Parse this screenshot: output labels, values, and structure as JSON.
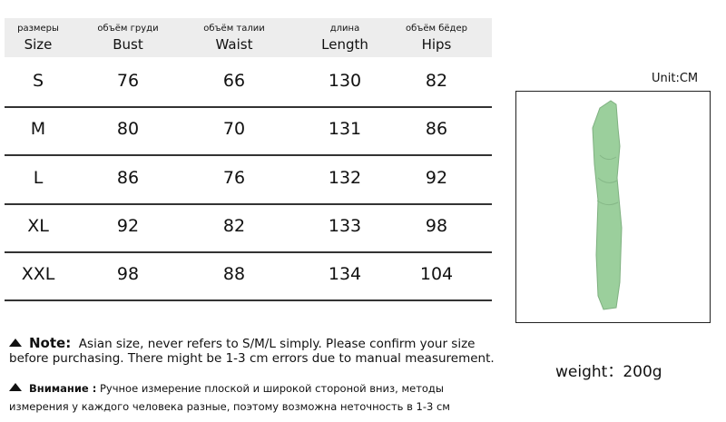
{
  "table": {
    "headers": [
      {
        "ru": "размеры",
        "en": "Size"
      },
      {
        "ru": "объём груди",
        "en": "Bust"
      },
      {
        "ru": "объём талии",
        "en": "Waist"
      },
      {
        "ru": "длина",
        "en": "Length"
      },
      {
        "ru": "объём бёдер",
        "en": "Hips"
      }
    ],
    "rows": [
      [
        "S",
        "76",
        "66",
        "130",
        "82"
      ],
      [
        "M",
        "80",
        "70",
        "131",
        "86"
      ],
      [
        "L",
        "86",
        "76",
        "132",
        "92"
      ],
      [
        "XL",
        "92",
        "82",
        "133",
        "98"
      ],
      [
        "XXL",
        "98",
        "88",
        "134",
        "104"
      ]
    ]
  },
  "notes": {
    "en_label": "Note:",
    "en_text": "Asian size, never refers to S/M/L simply. Please confirm your size before purchasing. There might be 1-3 cm errors due to manual measurement.",
    "ru_label": "Внимание :",
    "ru_text": "Ручное измерение плоской и широкой стороной вниз, методы измерения у каждого человека разные, поэтому возможна неточность в 1-3 см"
  },
  "unit": "Unit:CM",
  "weight": "weight：200g",
  "product_color": "#9bcf9c"
}
